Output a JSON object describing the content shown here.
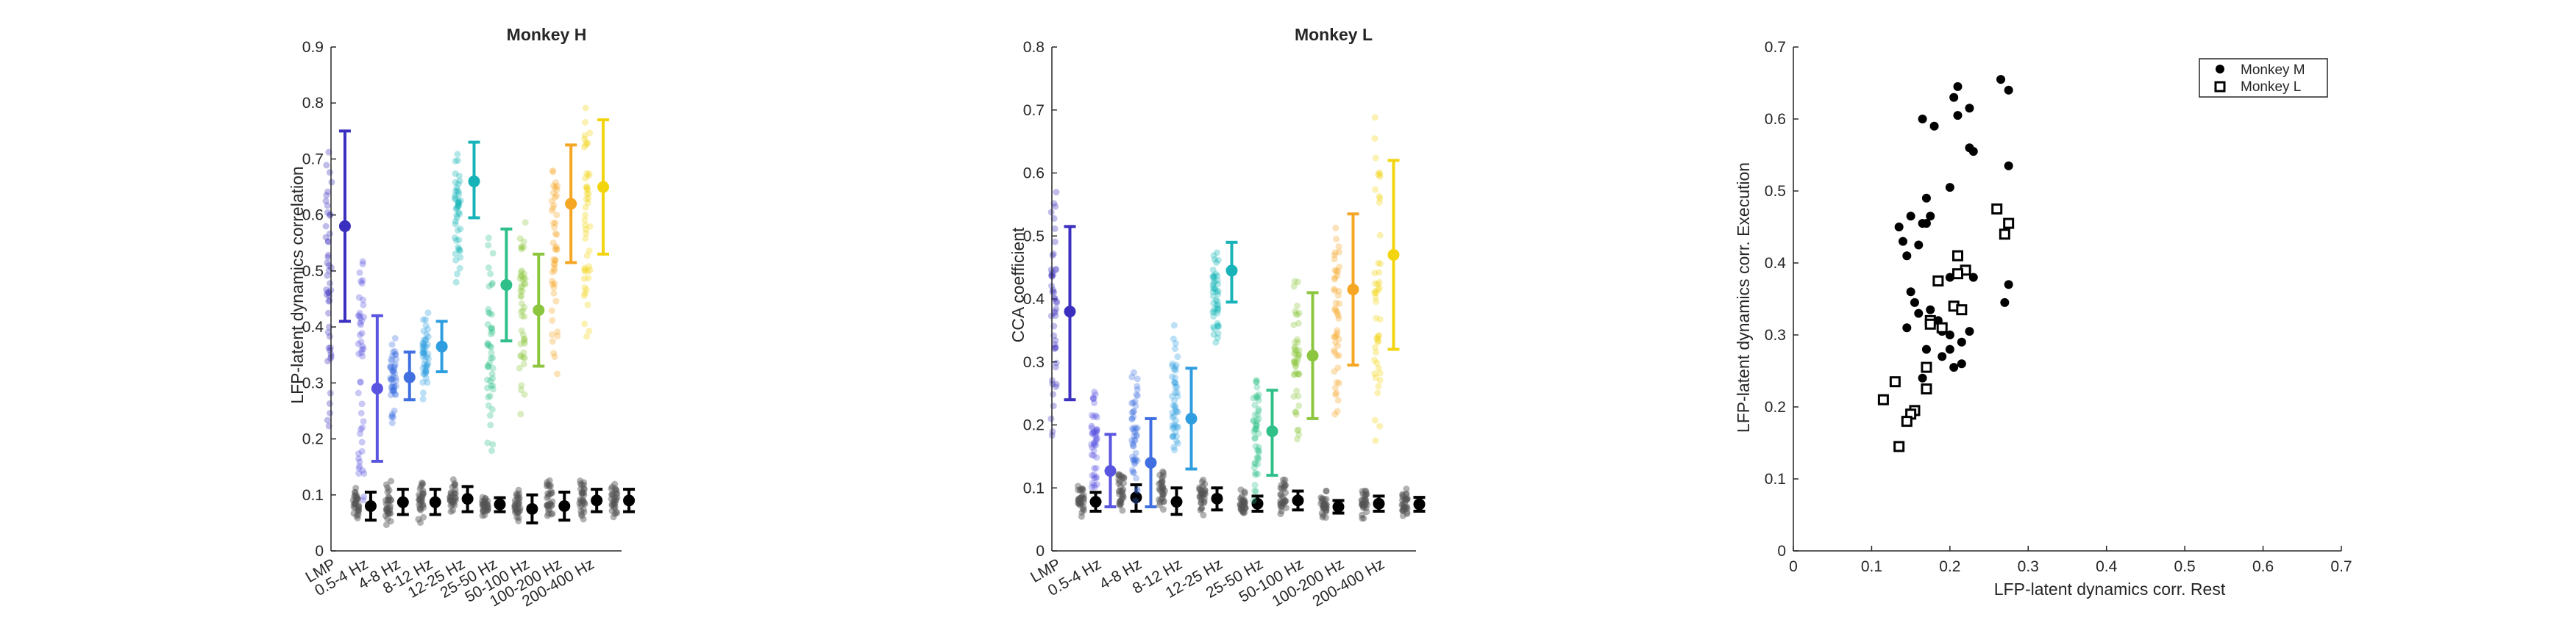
{
  "chart_data": [
    {
      "type": "scatter",
      "title": "Monkey H",
      "xlabel": "",
      "ylabel": "LFP-latent dynamics correlation",
      "ylim": [
        0,
        0.9
      ],
      "yticks": [
        "0",
        "0.1",
        "0.2",
        "0.3",
        "0.4",
        "0.5",
        "0.6",
        "0.7",
        "0.8",
        "0.9"
      ],
      "categories": [
        "LMP",
        "0.5-4 Hz",
        "4-8 Hz",
        "8-12 Hz",
        "12-25 Hz",
        "25-50 Hz",
        "50-100 Hz",
        "100-200 Hz",
        "200-400 Hz"
      ],
      "colors": [
        "#3b2fbf",
        "#5a55e0",
        "#3f6fe0",
        "#2f9ee0",
        "#17b3b8",
        "#2fc08a",
        "#8cc63f",
        "#f5a623",
        "#f2d50f"
      ],
      "series": [
        {
          "mean": [
            0.58,
            0.29,
            0.31,
            0.365,
            0.66,
            0.475,
            0.43,
            0.62,
            0.65
          ],
          "lower": [
            0.41,
            0.16,
            0.27,
            0.32,
            0.595,
            0.375,
            0.33,
            0.515,
            0.53
          ],
          "upper": [
            0.75,
            0.42,
            0.355,
            0.41,
            0.73,
            0.575,
            0.53,
            0.725,
            0.77
          ],
          "spread_min": [
            0.14,
            0.07,
            0.21,
            0.27,
            0.46,
            0.14,
            0.24,
            0.29,
            0.35
          ],
          "spread_max": [
            0.78,
            0.57,
            0.39,
            0.45,
            0.73,
            0.6,
            0.64,
            0.78,
            0.84
          ]
        },
        {
          "mean": [
            0.08,
            0.087,
            0.087,
            0.093,
            0.083,
            0.075,
            0.08,
            0.09,
            0.09
          ],
          "lower": [
            0.055,
            0.065,
            0.065,
            0.07,
            0.07,
            0.05,
            0.055,
            0.07,
            0.07
          ],
          "upper": [
            0.105,
            0.11,
            0.11,
            0.115,
            0.095,
            0.1,
            0.105,
            0.11,
            0.11
          ],
          "spread_min": [
            0.05,
            0.04,
            0.05,
            0.06,
            0.06,
            0.04,
            0.05,
            0.05,
            0.05
          ],
          "spread_max": [
            0.12,
            0.13,
            0.13,
            0.13,
            0.1,
            0.12,
            0.13,
            0.13,
            0.13
          ]
        }
      ]
    },
    {
      "type": "scatter",
      "title": "Monkey L",
      "xlabel": "",
      "ylabel": "CCA coefficient",
      "ylim": [
        0,
        0.8
      ],
      "yticks": [
        "0",
        "0.1",
        "0.2",
        "0.3",
        "0.4",
        "0.5",
        "0.6",
        "0.7",
        "0.8"
      ],
      "categories": [
        "LMP",
        "0.5-4 Hz",
        "4-8 Hz",
        "8-12 Hz",
        "12-25 Hz",
        "25-50 Hz",
        "50-100 Hz",
        "100-200 Hz",
        "200-400 Hz"
      ],
      "colors": [
        "#3b2fbf",
        "#5a55e0",
        "#3f6fe0",
        "#2f9ee0",
        "#17b3b8",
        "#2fc08a",
        "#8cc63f",
        "#f5a623",
        "#f2d50f"
      ],
      "series": [
        {
          "mean": [
            0.38,
            0.127,
            0.14,
            0.21,
            0.445,
            0.19,
            0.31,
            0.415,
            0.47
          ],
          "lower": [
            0.24,
            0.07,
            0.07,
            0.13,
            0.395,
            0.12,
            0.21,
            0.295,
            0.32
          ],
          "upper": [
            0.515,
            0.185,
            0.21,
            0.29,
            0.49,
            0.255,
            0.41,
            0.535,
            0.62
          ],
          "spread_min": [
            0.17,
            0.05,
            0.05,
            0.1,
            0.31,
            0.06,
            0.12,
            0.18,
            0.11
          ],
          "spread_max": [
            0.6,
            0.27,
            0.3,
            0.39,
            0.52,
            0.32,
            0.46,
            0.61,
            0.74
          ]
        },
        {
          "mean": [
            0.078,
            0.085,
            0.078,
            0.083,
            0.075,
            0.08,
            0.07,
            0.075,
            0.074
          ],
          "lower": [
            0.063,
            0.063,
            0.058,
            0.065,
            0.063,
            0.065,
            0.06,
            0.063,
            0.063
          ],
          "upper": [
            0.093,
            0.105,
            0.1,
            0.1,
            0.087,
            0.095,
            0.08,
            0.087,
            0.085
          ],
          "spread_min": [
            0.05,
            0.05,
            0.05,
            0.05,
            0.05,
            0.05,
            0.05,
            0.05,
            0.05
          ],
          "spread_max": [
            0.11,
            0.13,
            0.13,
            0.12,
            0.1,
            0.12,
            0.1,
            0.1,
            0.1
          ]
        }
      ]
    },
    {
      "type": "scatter",
      "title": "",
      "xlabel": "LFP-latent dynamics corr. Rest",
      "ylabel": "LFP-latent dynamics corr. Execution",
      "xlim": [
        0,
        0.7
      ],
      "ylim": [
        0,
        0.7
      ],
      "xticks": [
        "0",
        "0.1",
        "0.2",
        "0.3",
        "0.4",
        "0.5",
        "0.6",
        "0.7"
      ],
      "yticks": [
        "0",
        "0.1",
        "0.2",
        "0.3",
        "0.4",
        "0.5",
        "0.6",
        "0.7"
      ],
      "legend_position": "top-right",
      "series": [
        {
          "name": "Monkey M",
          "marker": "filled-circle",
          "color": "#000000",
          "points": [
            [
              0.265,
              0.655
            ],
            [
              0.275,
              0.64
            ],
            [
              0.21,
              0.645
            ],
            [
              0.205,
              0.63
            ],
            [
              0.225,
              0.615
            ],
            [
              0.21,
              0.605
            ],
            [
              0.165,
              0.6
            ],
            [
              0.18,
              0.59
            ],
            [
              0.225,
              0.56
            ],
            [
              0.23,
              0.555
            ],
            [
              0.275,
              0.535
            ],
            [
              0.2,
              0.505
            ],
            [
              0.17,
              0.49
            ],
            [
              0.15,
              0.465
            ],
            [
              0.175,
              0.465
            ],
            [
              0.165,
              0.455
            ],
            [
              0.17,
              0.455
            ],
            [
              0.135,
              0.45
            ],
            [
              0.14,
              0.43
            ],
            [
              0.16,
              0.425
            ],
            [
              0.145,
              0.41
            ],
            [
              0.2,
              0.38
            ],
            [
              0.23,
              0.38
            ],
            [
              0.275,
              0.37
            ],
            [
              0.15,
              0.36
            ],
            [
              0.155,
              0.345
            ],
            [
              0.27,
              0.345
            ],
            [
              0.175,
              0.335
            ],
            [
              0.16,
              0.33
            ],
            [
              0.185,
              0.32
            ],
            [
              0.145,
              0.31
            ],
            [
              0.19,
              0.305
            ],
            [
              0.2,
              0.3
            ],
            [
              0.225,
              0.305
            ],
            [
              0.215,
              0.29
            ],
            [
              0.17,
              0.28
            ],
            [
              0.2,
              0.28
            ],
            [
              0.19,
              0.27
            ],
            [
              0.215,
              0.26
            ],
            [
              0.205,
              0.255
            ],
            [
              0.165,
              0.24
            ]
          ]
        },
        {
          "name": "Monkey L",
          "marker": "open-square",
          "color": "#000000",
          "points": [
            [
              0.26,
              0.475
            ],
            [
              0.275,
              0.455
            ],
            [
              0.27,
              0.44
            ],
            [
              0.21,
              0.41
            ],
            [
              0.22,
              0.39
            ],
            [
              0.21,
              0.385
            ],
            [
              0.185,
              0.375
            ],
            [
              0.205,
              0.34
            ],
            [
              0.215,
              0.335
            ],
            [
              0.175,
              0.32
            ],
            [
              0.175,
              0.315
            ],
            [
              0.19,
              0.31
            ],
            [
              0.17,
              0.255
            ],
            [
              0.13,
              0.235
            ],
            [
              0.17,
              0.225
            ],
            [
              0.115,
              0.21
            ],
            [
              0.155,
              0.195
            ],
            [
              0.15,
              0.19
            ],
            [
              0.145,
              0.18
            ],
            [
              0.135,
              0.145
            ]
          ]
        }
      ]
    }
  ]
}
